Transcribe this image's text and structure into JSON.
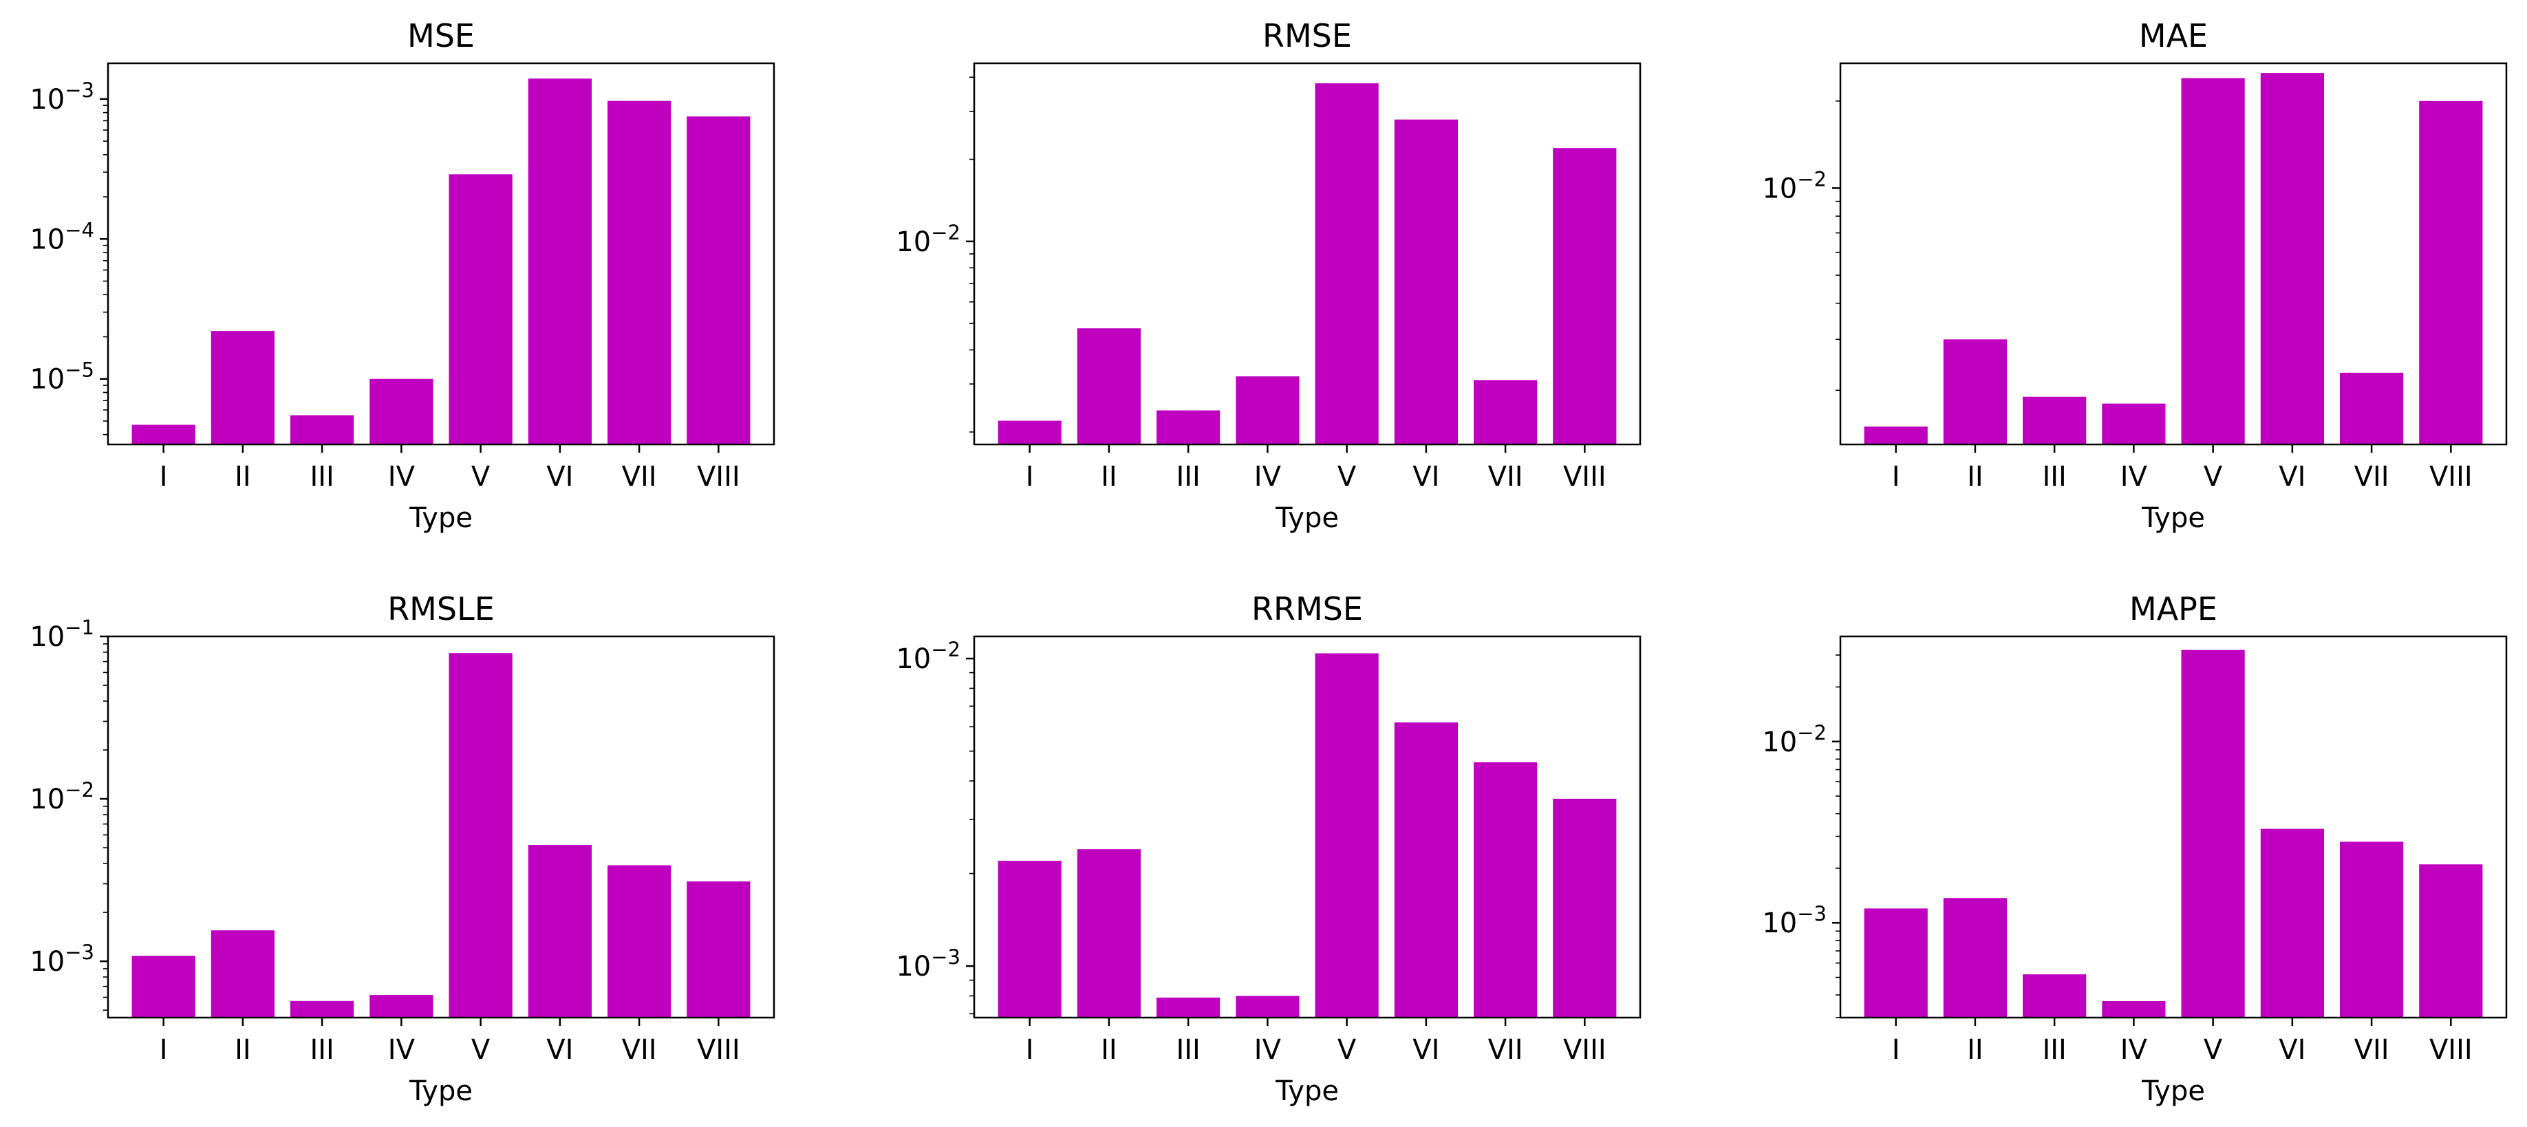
{
  "colors": {
    "bar": "#bf00bf",
    "axes": "#000000",
    "background": "#ffffff"
  },
  "chart_data": [
    {
      "type": "bar",
      "title": "MSE",
      "xlabel": "Type",
      "ylabel": "",
      "yscale": "log",
      "ylim": [
        3.4e-06,
        0.0018
      ],
      "yticks": [
        {
          "value": 1e-05,
          "label_exp": "−5"
        },
        {
          "value": 0.0001,
          "label_exp": "−4"
        },
        {
          "value": 0.001,
          "label_exp": "−3"
        }
      ],
      "categories": [
        "I",
        "II",
        "III",
        "IV",
        "V",
        "VI",
        "VII",
        "VIII"
      ],
      "values": [
        4.7e-06,
        2.2e-05,
        5.5e-06,
        1e-05,
        0.00029,
        0.0014,
        0.00097,
        0.00075
      ],
      "grid": false
    },
    {
      "type": "bar",
      "title": "RMSE",
      "xlabel": "Type",
      "ylabel": "",
      "yscale": "log",
      "ylim": [
        0.0018,
        0.045
      ],
      "yticks": [
        {
          "value": 0.01,
          "label_exp": "−2"
        }
      ],
      "categories": [
        "I",
        "II",
        "III",
        "IV",
        "V",
        "VI",
        "VII",
        "VIII"
      ],
      "values": [
        0.0022,
        0.0048,
        0.0024,
        0.0032,
        0.038,
        0.028,
        0.0031,
        0.022
      ],
      "grid": false
    },
    {
      "type": "bar",
      "title": "MAE",
      "xlabel": "Type",
      "ylabel": "",
      "yscale": "log",
      "ylim": [
        0.0013,
        0.027
      ],
      "yticks": [
        {
          "value": 0.01,
          "label_exp": "−2"
        }
      ],
      "categories": [
        "I",
        "II",
        "III",
        "IV",
        "V",
        "VI",
        "VII",
        "VIII"
      ],
      "values": [
        0.0015,
        0.003,
        0.0019,
        0.0018,
        0.024,
        0.025,
        0.0023,
        0.02
      ],
      "grid": false
    },
    {
      "type": "bar",
      "title": "RMSLE",
      "xlabel": "Type",
      "ylabel": "",
      "yscale": "log",
      "ylim": [
        0.00045,
        0.1
      ],
      "yticks": [
        {
          "value": 0.001,
          "label_exp": "−3"
        },
        {
          "value": 0.01,
          "label_exp": "−2"
        },
        {
          "value": 0.1,
          "label_exp": "−1"
        }
      ],
      "categories": [
        "I",
        "II",
        "III",
        "IV",
        "V",
        "VI",
        "VII",
        "VIII"
      ],
      "values": [
        0.00108,
        0.00155,
        0.00057,
        0.00062,
        0.079,
        0.0052,
        0.0039,
        0.0031
      ],
      "grid": false
    },
    {
      "type": "bar",
      "title": "RRMSE",
      "xlabel": "Type",
      "ylabel": "",
      "yscale": "log",
      "ylim": [
        0.00068,
        0.0118
      ],
      "yticks": [
        {
          "value": 0.001,
          "label_exp": "−3"
        },
        {
          "value": 0.01,
          "label_exp": "−2"
        }
      ],
      "categories": [
        "I",
        "II",
        "III",
        "IV",
        "V",
        "VI",
        "VII",
        "VIII"
      ],
      "values": [
        0.0022,
        0.0024,
        0.00079,
        0.0008,
        0.0104,
        0.0062,
        0.0046,
        0.0035
      ],
      "grid": false
    },
    {
      "type": "bar",
      "title": "MAPE",
      "xlabel": "Type",
      "ylabel": "",
      "yscale": "log",
      "ylim": [
        0.0003,
        0.038
      ],
      "yticks": [
        {
          "value": 0.001,
          "label_exp": "−3"
        },
        {
          "value": 0.01,
          "label_exp": "−2"
        }
      ],
      "categories": [
        "I",
        "II",
        "III",
        "IV",
        "V",
        "VI",
        "VII",
        "VIII"
      ],
      "values": [
        0.0012,
        0.00137,
        0.00052,
        0.00037,
        0.032,
        0.0033,
        0.0028,
        0.0021
      ],
      "grid": false
    }
  ]
}
